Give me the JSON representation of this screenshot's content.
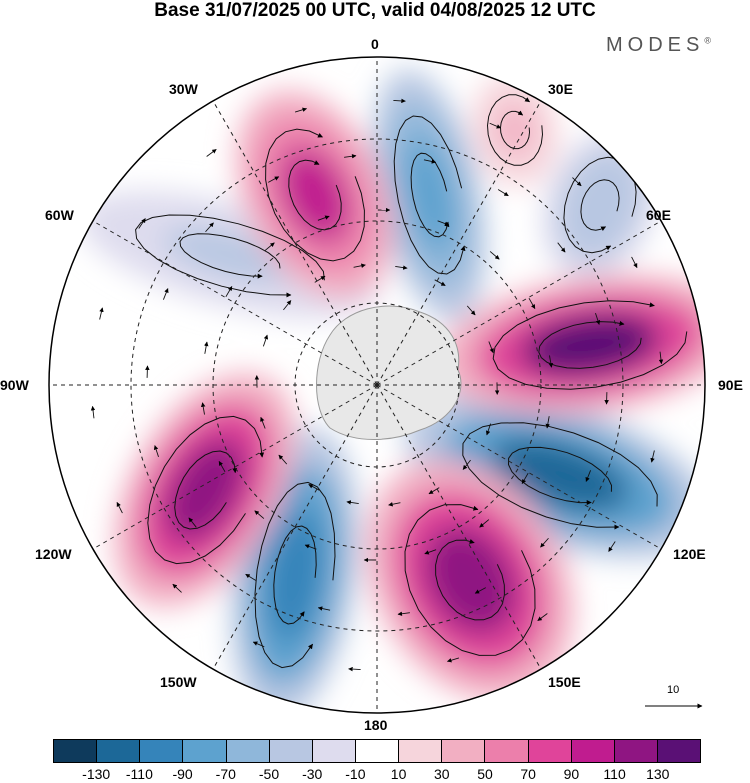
{
  "title": "Base 31/07/2025 00 UTC, valid 04/08/2025 12 UTC",
  "brand": "MODES",
  "brand_mark": "®",
  "longitude_labels": {
    "lon_0": "0",
    "lon_30e": "30E",
    "lon_60e": "60E",
    "lon_90e": "90E",
    "lon_120e": "120E",
    "lon_150e": "150E",
    "lon_180": "180",
    "lon_150w": "150W",
    "lon_120w": "120W",
    "lon_90w": "90W",
    "lon_60w": "60W",
    "lon_30w": "30W"
  },
  "vector_reference": "10",
  "colorbar": {
    "colors": [
      "#0e3a5c",
      "#1c6898",
      "#3584ba",
      "#5da2cf",
      "#8fb7da",
      "#b8c7e2",
      "#dedcee",
      "#ffffff",
      "#f6d5dc",
      "#f2afc2",
      "#ec7fab",
      "#e0449a",
      "#c01c8f",
      "#8f1582",
      "#5a1075"
    ],
    "ticks": [
      "-130",
      "-110",
      "-90",
      "-70",
      "-50",
      "-30",
      "-10",
      "10",
      "30",
      "50",
      "70",
      "90",
      "110",
      "130"
    ]
  },
  "anomaly_centers": [
    {
      "name": "negative-anomaly-0",
      "sign": "negative",
      "value": -90
    },
    {
      "name": "negative-anomaly-30e",
      "sign": "negative",
      "value": -50
    },
    {
      "name": "negative-anomaly-60w",
      "sign": "negative",
      "value": -40
    },
    {
      "name": "negative-anomaly-110e",
      "sign": "negative",
      "value": -130
    },
    {
      "name": "negative-anomaly-165w",
      "sign": "negative",
      "value": -110
    },
    {
      "name": "positive-anomaly-20w",
      "sign": "positive",
      "value": 100
    },
    {
      "name": "positive-anomaly-15e",
      "sign": "positive",
      "value": 30
    },
    {
      "name": "positive-anomaly-80e",
      "sign": "positive",
      "value": 130
    },
    {
      "name": "positive-anomaly-150e",
      "sign": "positive",
      "value": 110
    },
    {
      "name": "positive-anomaly-130w",
      "sign": "positive",
      "value": 120
    }
  ]
}
